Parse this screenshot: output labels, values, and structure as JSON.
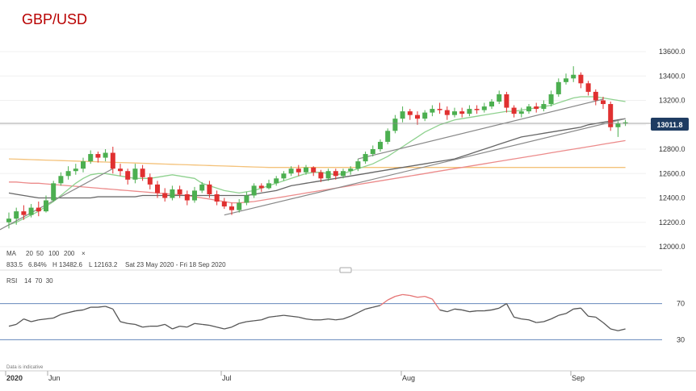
{
  "title": "GBP/USD",
  "price_badge": "13011.8",
  "legend": {
    "label": "MA",
    "items": [
      {
        "text": "20",
        "color": "#6cbf6c"
      },
      {
        "text": "50",
        "color": "#555555"
      },
      {
        "text": "100",
        "color": "#e57373"
      },
      {
        "text": "200",
        "color": "#f0b44c"
      }
    ],
    "close_glyph": "×"
  },
  "info": {
    "a": "833.5",
    "b": "6.84%",
    "high": "H 13482.6",
    "low": "L 12163.2",
    "range": "Sat 23 May 2020 - Fri 18 Sep 2020"
  },
  "rsi": {
    "label": "RSI",
    "params": "14  70  30",
    "levels": [
      70,
      30
    ]
  },
  "disclaimer": "Data is indicative",
  "colors": {
    "up": "#4caf50",
    "down": "#e03030",
    "ma20": "#8fd18f",
    "ma50": "#666666",
    "ma100": "#ec8b8b",
    "ma200": "#f4c27a",
    "trend": "#888888",
    "rsi_line": "#555555",
    "rsi_over": "#e57373",
    "levels": "#6688bb"
  },
  "chart_data": {
    "type": "candlestick",
    "ylim": [
      12000,
      13600
    ],
    "yticks": [
      "13600.0",
      "13400.0",
      "13200.0",
      "13000.0",
      "12800.0",
      "12600.0",
      "12400.0",
      "12200.0",
      "12000.0"
    ],
    "xlabels": [
      "2020",
      "Jun",
      "Jul",
      "Aug",
      "Sep"
    ],
    "current": 13011.8,
    "candles": [
      [
        12200,
        12230,
        12150,
        12280
      ],
      [
        12230,
        12290,
        12180,
        12320
      ],
      [
        12290,
        12260,
        12220,
        12340
      ],
      [
        12260,
        12320,
        12240,
        12350
      ],
      [
        12320,
        12290,
        12250,
        12370
      ],
      [
        12290,
        12380,
        12280,
        12420
      ],
      [
        12380,
        12520,
        12370,
        12540
      ],
      [
        12520,
        12580,
        12500,
        12610
      ],
      [
        12580,
        12620,
        12550,
        12660
      ],
      [
        12620,
        12640,
        12590,
        12680
      ],
      [
        12640,
        12700,
        12610,
        12730
      ],
      [
        12700,
        12760,
        12680,
        12790
      ],
      [
        12760,
        12730,
        12690,
        12780
      ],
      [
        12730,
        12770,
        12700,
        12800
      ],
      [
        12770,
        12640,
        12600,
        12820
      ],
      [
        12640,
        12620,
        12580,
        12680
      ],
      [
        12620,
        12550,
        12510,
        12640
      ],
      [
        12550,
        12640,
        12520,
        12680
      ],
      [
        12640,
        12570,
        12540,
        12670
      ],
      [
        12570,
        12510,
        12470,
        12600
      ],
      [
        12510,
        12440,
        12400,
        12540
      ],
      [
        12440,
        12400,
        12370,
        12480
      ],
      [
        12400,
        12470,
        12380,
        12500
      ],
      [
        12470,
        12430,
        12400,
        12500
      ],
      [
        12430,
        12380,
        12340,
        12460
      ],
      [
        12380,
        12460,
        12360,
        12490
      ],
      [
        12460,
        12510,
        12440,
        12530
      ],
      [
        12510,
        12430,
        12400,
        12540
      ],
      [
        12430,
        12370,
        12340,
        12460
      ],
      [
        12370,
        12330,
        12310,
        12400
      ],
      [
        12330,
        12300,
        12260,
        12360
      ],
      [
        12300,
        12360,
        12280,
        12390
      ],
      [
        12360,
        12420,
        12340,
        12450
      ],
      [
        12420,
        12500,
        12400,
        12520
      ],
      [
        12500,
        12480,
        12450,
        12520
      ],
      [
        12480,
        12520,
        12470,
        12550
      ],
      [
        12520,
        12560,
        12500,
        12580
      ],
      [
        12560,
        12600,
        12540,
        12620
      ],
      [
        12600,
        12640,
        12580,
        12660
      ],
      [
        12640,
        12610,
        12580,
        12670
      ],
      [
        12610,
        12650,
        12590,
        12670
      ],
      [
        12650,
        12610,
        12580,
        12660
      ],
      [
        12610,
        12560,
        12530,
        12630
      ],
      [
        12560,
        12620,
        12540,
        12640
      ],
      [
        12620,
        12580,
        12550,
        12640
      ],
      [
        12580,
        12620,
        12560,
        12640
      ],
      [
        12620,
        12640,
        12590,
        12660
      ],
      [
        12640,
        12700,
        12620,
        12720
      ],
      [
        12700,
        12760,
        12680,
        12780
      ],
      [
        12760,
        12800,
        12740,
        12830
      ],
      [
        12800,
        12860,
        12780,
        12880
      ],
      [
        12860,
        12950,
        12840,
        12970
      ],
      [
        12950,
        13050,
        12930,
        13080
      ],
      [
        13050,
        13110,
        13020,
        13150
      ],
      [
        13110,
        13080,
        13040,
        13130
      ],
      [
        13080,
        13050,
        13000,
        13110
      ],
      [
        13050,
        13100,
        13030,
        13120
      ],
      [
        13100,
        13130,
        13070,
        13160
      ],
      [
        13130,
        13120,
        13090,
        13180
      ],
      [
        13120,
        13080,
        13040,
        13150
      ],
      [
        13080,
        13110,
        13060,
        13140
      ],
      [
        13110,
        13090,
        13060,
        13140
      ],
      [
        13090,
        13130,
        13070,
        13160
      ],
      [
        13130,
        13120,
        13090,
        13160
      ],
      [
        13120,
        13150,
        13100,
        13180
      ],
      [
        13150,
        13190,
        13130,
        13210
      ],
      [
        13190,
        13250,
        13170,
        13280
      ],
      [
        13250,
        13140,
        13100,
        13270
      ],
      [
        13140,
        13090,
        13060,
        13160
      ],
      [
        13090,
        13110,
        13060,
        13140
      ],
      [
        13110,
        13150,
        13090,
        13170
      ],
      [
        13150,
        13130,
        13100,
        13180
      ],
      [
        13130,
        13170,
        13110,
        13200
      ],
      [
        13170,
        13250,
        13150,
        13280
      ],
      [
        13250,
        13350,
        13230,
        13380
      ],
      [
        13350,
        13380,
        13330,
        13420
      ],
      [
        13380,
        13410,
        13350,
        13480
      ],
      [
        13410,
        13340,
        13300,
        13430
      ],
      [
        13340,
        13270,
        13240,
        13360
      ],
      [
        13270,
        13200,
        13160,
        13290
      ],
      [
        13200,
        13170,
        13130,
        13230
      ],
      [
        13170,
        12980,
        12950,
        13190
      ],
      [
        12980,
        13010,
        12900,
        13030
      ],
      [
        13010,
        13020,
        12990,
        13040
      ]
    ],
    "ma20": [
      12180,
      12200,
      12230,
      12260,
      12290,
      12330,
      12370,
      12420,
      12470,
      12520,
      12560,
      12590,
      12600,
      12600,
      12590,
      12580,
      12570,
      12560,
      12560,
      12560,
      12570,
      12580,
      12590,
      12580,
      12570,
      12560,
      12520,
      12500,
      12480,
      12460,
      12450,
      12440,
      12450,
      12460,
      12480,
      12500,
      12520,
      12540,
      12560,
      12580,
      12600,
      12610,
      12610,
      12600,
      12590,
      12600,
      12620,
      12640,
      12660,
      12680,
      12710,
      12740,
      12780,
      12820,
      12860,
      12900,
      12940,
      12970,
      13000,
      13020,
      13040,
      13050,
      13060,
      13070,
      13080,
      13090,
      13100,
      13110,
      13110,
      13120,
      13130,
      13140,
      13150,
      13160,
      13180,
      13200,
      13220,
      13230,
      13230,
      13230,
      13220,
      13210,
      13200,
      13190
    ],
    "ma50": [
      12440,
      12430,
      12420,
      12410,
      12400,
      12400,
      12400,
      12400,
      12400,
      12400,
      12400,
      12400,
      12410,
      12410,
      12410,
      12410,
      12410,
      12410,
      12420,
      12420,
      12420,
      12420,
      12420,
      12420,
      12420,
      12420,
      12420,
      12420,
      12420,
      12420,
      12420,
      12420,
      12420,
      12430,
      12440,
      12450,
      12460,
      12480,
      12500,
      12510,
      12520,
      12530,
      12540,
      12550,
      12560,
      12570,
      12580,
      12590,
      12600,
      12610,
      12620,
      12630,
      12640,
      12650,
      12660,
      12670,
      12680,
      12690,
      12700,
      12710,
      12720,
      12740,
      12760,
      12780,
      12800,
      12820,
      12840,
      12860,
      12880,
      12900,
      12910,
      12920,
      12930,
      12940,
      12950,
      12960,
      12970,
      12980,
      13000,
      13010,
      13020,
      13030,
      13040,
      13050
    ],
    "ma100": [
      12530,
      12530,
      12525,
      12520,
      12520,
      12515,
      12510,
      12505,
      12500,
      12495,
      12490,
      12485,
      12480,
      12475,
      12470,
      12465,
      12460,
      12455,
      12450,
      12445,
      12440,
      12435,
      12430,
      12425,
      12420,
      12410,
      12400,
      12390,
      12380,
      12370,
      12360,
      12360,
      12365,
      12370,
      12380,
      12390,
      12400,
      12410,
      12420,
      12430,
      12440,
      12450,
      12460,
      12470,
      12480,
      12490,
      12500,
      12510,
      12520,
      12530,
      12540,
      12550,
      12560,
      12570,
      12580,
      12590,
      12600,
      12610,
      12620,
      12630,
      12640,
      12650,
      12660,
      12670,
      12680,
      12690,
      12700,
      12710,
      12720,
      12730,
      12740,
      12750,
      12760,
      12770,
      12780,
      12790,
      12800,
      12810,
      12820,
      12830,
      12840,
      12850,
      12860,
      12870
    ],
    "ma200": [
      12720,
      12718,
      12716,
      12714,
      12712,
      12710,
      12708,
      12706,
      12704,
      12702,
      12700,
      12698,
      12696,
      12694,
      12692,
      12690,
      12688,
      12686,
      12684,
      12682,
      12680,
      12678,
      12676,
      12674,
      12672,
      12670,
      12668,
      12666,
      12664,
      12662,
      12660,
      12658,
      12656,
      12654,
      12652,
      12650,
      12650,
      12650,
      12650,
      12650,
      12650,
      12650,
      12650,
      12650,
      12650,
      12650,
      12650,
      12650,
      12650,
      12650,
      12650,
      12650,
      12650,
      12650,
      12650,
      12650,
      12650,
      12650,
      12650,
      12650,
      12650,
      12650,
      12650,
      12650,
      12650,
      12650,
      12650,
      12650,
      12650,
      12650,
      12650,
      12650,
      12650,
      12650,
      12650,
      12650,
      12650,
      12650,
      12650,
      12650,
      12650,
      12650,
      12650,
      12650
    ],
    "rsi": [
      45,
      47,
      53,
      50,
      52,
      53,
      54,
      58,
      60,
      62,
      63,
      66,
      66,
      67,
      64,
      50,
      48,
      47,
      44,
      45,
      45,
      47,
      42,
      45,
      44,
      48,
      47,
      46,
      44,
      42,
      44,
      48,
      50,
      51,
      52,
      55,
      56,
      57,
      56,
      55,
      53,
      52,
      52,
      53,
      52,
      53,
      56,
      60,
      64,
      66,
      68,
      74,
      78,
      80,
      79,
      77,
      78,
      75,
      63,
      61,
      64,
      63,
      61,
      62,
      62,
      63,
      65,
      70,
      55,
      53,
      52,
      49,
      50,
      53,
      57,
      59,
      64,
      65,
      56,
      55,
      49,
      42,
      40,
      42
    ]
  }
}
